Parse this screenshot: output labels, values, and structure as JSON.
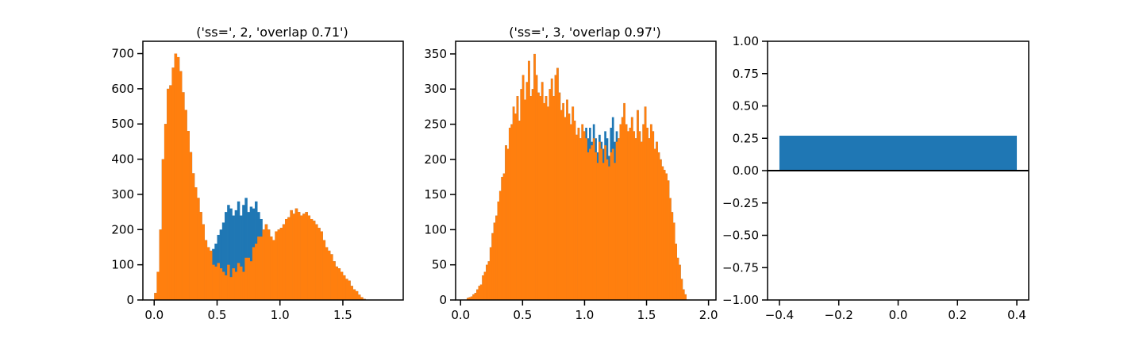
{
  "colors": {
    "blue": "#1f77b4",
    "orange": "#ff7f0e"
  },
  "chart_data": [
    {
      "type": "histogram",
      "title": "('ss=', 2, 'overlap 0.71')",
      "xlim": [
        -0.09,
        1.98
      ],
      "ylim": [
        0,
        735
      ],
      "xticks": [
        0.0,
        0.5,
        1.0,
        1.5
      ],
      "xtick_labels": [
        "0.0",
        "0.5",
        "1.0",
        "1.5"
      ],
      "yticks": [
        0,
        100,
        200,
        300,
        400,
        500,
        600,
        700
      ],
      "ytick_labels": [
        "0",
        "100",
        "200",
        "300",
        "400",
        "500",
        "600",
        "700"
      ],
      "series": [
        {
          "color": "blue",
          "x_start": 0.0,
          "bin_width": 0.02,
          "values": [
            20,
            80,
            200,
            400,
            500,
            600,
            610,
            660,
            700,
            690,
            650,
            590,
            540,
            480,
            420,
            360,
            320,
            290,
            250,
            215,
            170,
            150,
            140,
            145,
            160,
            185,
            200,
            220,
            250,
            270,
            260,
            240,
            255,
            280,
            240,
            270,
            290,
            250,
            265,
            260,
            280,
            250,
            230,
            200,
            215,
            200,
            180,
            170,
            195,
            200,
            205,
            215,
            230,
            235,
            255,
            245,
            260,
            250,
            240,
            245,
            250,
            240,
            230,
            225,
            215,
            205,
            195,
            170,
            150,
            140,
            130,
            110,
            95,
            90,
            80,
            70,
            60,
            55,
            40,
            30,
            25,
            15,
            8,
            3
          ]
        },
        {
          "color": "orange",
          "x_start": 0.0,
          "bin_width": 0.02,
          "values": [
            20,
            80,
            200,
            400,
            500,
            600,
            610,
            660,
            700,
            690,
            650,
            590,
            540,
            480,
            420,
            360,
            320,
            290,
            250,
            215,
            170,
            150,
            140,
            100,
            95,
            105,
            90,
            80,
            70,
            100,
            65,
            90,
            80,
            105,
            95,
            80,
            120,
            120,
            110,
            150,
            160,
            180,
            180,
            200,
            215,
            200,
            180,
            170,
            195,
            200,
            205,
            215,
            230,
            235,
            255,
            245,
            260,
            250,
            240,
            245,
            250,
            240,
            230,
            225,
            215,
            205,
            195,
            170,
            150,
            140,
            130,
            110,
            95,
            90,
            80,
            70,
            60,
            55,
            40,
            30,
            25,
            15,
            8,
            3
          ]
        }
      ]
    },
    {
      "type": "histogram",
      "title": "('ss=', 3, 'overlap 0.97')",
      "xlim": [
        -0.04,
        2.06
      ],
      "ylim": [
        0,
        368
      ],
      "xticks": [
        0.0,
        0.5,
        1.0,
        1.5,
        2.0
      ],
      "xtick_labels": [
        "0.0",
        "0.5",
        "1.0",
        "1.5",
        "2.0"
      ],
      "yticks": [
        0,
        50,
        100,
        150,
        200,
        250,
        300,
        350
      ],
      "ytick_labels": [
        "0",
        "50",
        "100",
        "150",
        "200",
        "250",
        "300",
        "350"
      ],
      "series": [
        {
          "color": "blue",
          "x_start": 0.05,
          "bin_width": 0.0154,
          "values": [
            3,
            4,
            5,
            8,
            10,
            15,
            20,
            22,
            35,
            40,
            50,
            55,
            75,
            95,
            110,
            120,
            140,
            155,
            175,
            180,
            220,
            215,
            245,
            250,
            275,
            265,
            290,
            255,
            300,
            320,
            285,
            310,
            340,
            290,
            300,
            350,
            320,
            295,
            290,
            310,
            280,
            290,
            275,
            300,
            315,
            290,
            320,
            330,
            295,
            270,
            280,
            260,
            285,
            265,
            250,
            275,
            255,
            235,
            245,
            230,
            250,
            240,
            245,
            230,
            245,
            225,
            250,
            230,
            210,
            235,
            225,
            215,
            240,
            230,
            205,
            245,
            260,
            225,
            240,
            230,
            250,
            260,
            280,
            250,
            240,
            245,
            260,
            240,
            230,
            270,
            240,
            225,
            250,
            275,
            245,
            230,
            250,
            240,
            215,
            225,
            210,
            200,
            190,
            185,
            180,
            170,
            145,
            125,
            110,
            80,
            60,
            50,
            30,
            15,
            8
          ]
        },
        {
          "color": "orange",
          "x_start": 0.05,
          "bin_width": 0.0154,
          "values": [
            3,
            4,
            5,
            8,
            10,
            15,
            20,
            22,
            35,
            40,
            50,
            55,
            75,
            95,
            110,
            120,
            140,
            155,
            175,
            180,
            220,
            215,
            245,
            250,
            275,
            265,
            290,
            255,
            300,
            320,
            285,
            310,
            340,
            290,
            300,
            350,
            320,
            295,
            290,
            310,
            280,
            290,
            275,
            300,
            315,
            290,
            320,
            330,
            295,
            270,
            280,
            260,
            285,
            265,
            250,
            275,
            255,
            235,
            245,
            230,
            250,
            240,
            230,
            210,
            215,
            220,
            230,
            210,
            195,
            225,
            215,
            195,
            220,
            200,
            190,
            210,
            215,
            195,
            225,
            230,
            250,
            260,
            280,
            250,
            240,
            245,
            260,
            240,
            230,
            270,
            240,
            225,
            250,
            275,
            245,
            230,
            250,
            240,
            215,
            225,
            210,
            200,
            190,
            185,
            180,
            170,
            145,
            125,
            110,
            80,
            60,
            50,
            30,
            15,
            8
          ]
        }
      ]
    },
    {
      "type": "bar",
      "categories": [
        0
      ],
      "values": [
        0.27
      ],
      "color": "blue",
      "bar_width": 0.8,
      "xlim": [
        -0.44,
        0.44
      ],
      "ylim": [
        -1.0,
        1.0
      ],
      "xticks": [
        -0.4,
        -0.2,
        0.0,
        0.2,
        0.4
      ],
      "xtick_labels": [
        "−0.4",
        "−0.2",
        "0.0",
        "0.2",
        "0.4"
      ],
      "yticks": [
        -1.0,
        -0.75,
        -0.5,
        -0.25,
        0.0,
        0.25,
        0.5,
        0.75,
        1.0
      ],
      "ytick_labels": [
        "−1.00",
        "−0.75",
        "−0.50",
        "−0.25",
        "0.00",
        "0.25",
        "0.50",
        "0.75",
        "1.00"
      ],
      "hline": 0
    }
  ]
}
